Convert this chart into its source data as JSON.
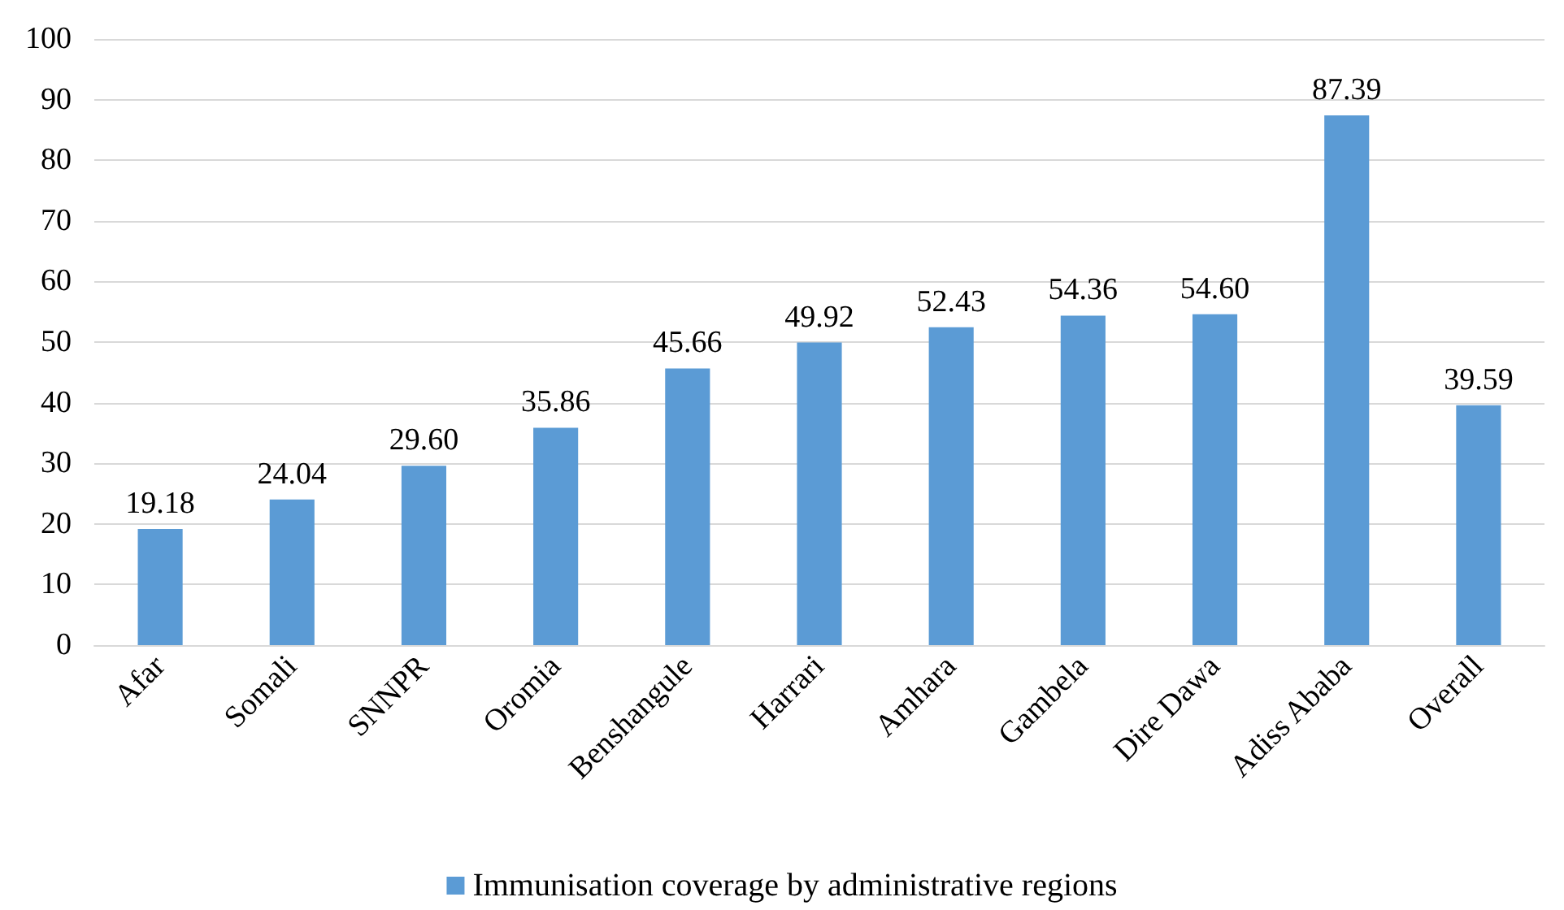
{
  "chart_data": {
    "type": "bar",
    "categories": [
      "Afar",
      "Somali",
      "SNNPR",
      "Oromia",
      "Benshangule",
      "Harrari",
      "Amhara",
      "Gambela",
      "Dire Dawa",
      "Adiss Ababa",
      "Overall"
    ],
    "series": [
      {
        "name": "Immunisation coverage by administrative regions",
        "color": "#5b9bd5",
        "values": [
          19.18,
          24.04,
          29.6,
          35.86,
          45.66,
          49.92,
          52.43,
          54.36,
          54.6,
          87.39,
          39.59
        ],
        "value_labels": [
          "19.18",
          "24.04",
          "29.60",
          "35.86",
          "45.66",
          "49.92",
          "52.43",
          "54.36",
          "54.60",
          "87.39",
          "39.59"
        ]
      }
    ],
    "ylim": [
      0,
      100
    ],
    "yticks": [
      0,
      10,
      20,
      30,
      40,
      50,
      60,
      70,
      80,
      90,
      100
    ],
    "grid": "y",
    "legend": "bottom"
  }
}
